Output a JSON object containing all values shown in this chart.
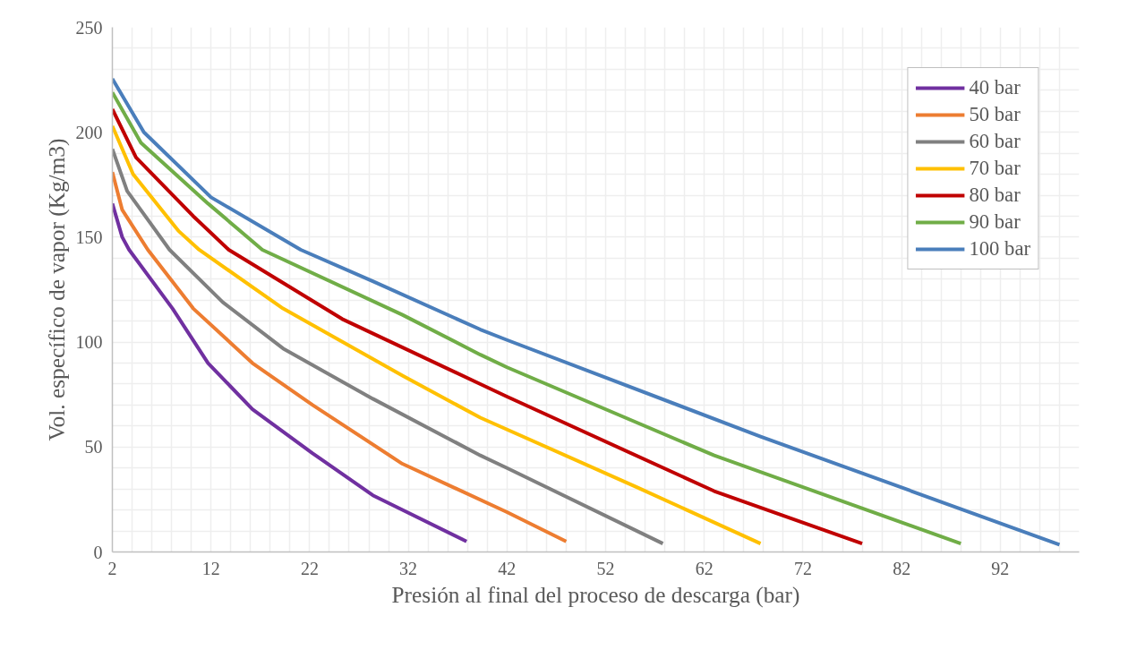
{
  "chart_data": {
    "type": "line",
    "xlabel": "Presión al final del proceso de descarga (bar)",
    "ylabel": "Vol. específico de vapor (Kg/m3)",
    "xlim": [
      2,
      100
    ],
    "ylim": [
      0,
      250
    ],
    "xticks": [
      2,
      {
        "value": 4,
        "label": null
      },
      {
        "value": 6,
        "label": null
      },
      {
        "value": 8,
        "label": null
      },
      {
        "value": 10,
        "label": null
      },
      12,
      {
        "value": 14,
        "label": null
      },
      {
        "value": 16,
        "label": null
      },
      {
        "value": 18,
        "label": null
      },
      {
        "value": 20,
        "label": null
      },
      22,
      {
        "value": 24,
        "label": null
      },
      {
        "value": 26,
        "label": null
      },
      {
        "value": 28,
        "label": null
      },
      {
        "value": 30,
        "label": null
      },
      32,
      {
        "value": 34,
        "label": null
      },
      {
        "value": 36,
        "label": null
      },
      {
        "value": 38,
        "label": null
      },
      {
        "value": 40,
        "label": null
      },
      42,
      {
        "value": 44,
        "label": null
      },
      {
        "value": 46,
        "label": null
      },
      {
        "value": 48,
        "label": null
      },
      {
        "value": 50,
        "label": null
      },
      52,
      {
        "value": 54,
        "label": null
      },
      {
        "value": 56,
        "label": null
      },
      {
        "value": 58,
        "label": null
      },
      {
        "value": 60,
        "label": null
      },
      62,
      {
        "value": 64,
        "label": null
      },
      {
        "value": 66,
        "label": null
      },
      {
        "value": 68,
        "label": null
      },
      {
        "value": 70,
        "label": null
      },
      72,
      {
        "value": 74,
        "label": null
      },
      {
        "value": 76,
        "label": null
      },
      {
        "value": 78,
        "label": null
      },
      {
        "value": 80,
        "label": null
      },
      82,
      {
        "value": 84,
        "label": null
      },
      {
        "value": 86,
        "label": null
      },
      {
        "value": 88,
        "label": null
      },
      {
        "value": 90,
        "label": null
      },
      92,
      {
        "value": 94,
        "label": null
      },
      {
        "value": 96,
        "label": null
      },
      {
        "value": 98,
        "label": null
      }
    ],
    "yticks": [
      0,
      {
        "value": 10,
        "label": null
      },
      {
        "value": 20,
        "label": null
      },
      {
        "value": 30,
        "label": null
      },
      {
        "value": 40,
        "label": null
      },
      50,
      {
        "value": 60,
        "label": null
      },
      {
        "value": 70,
        "label": null
      },
      {
        "value": 80,
        "label": null
      },
      {
        "value": 90,
        "label": null
      },
      100,
      {
        "value": 110,
        "label": null
      },
      {
        "value": 120,
        "label": null
      },
      {
        "value": 130,
        "label": null
      },
      {
        "value": 140,
        "label": null
      },
      150,
      {
        "value": 160,
        "label": null
      },
      {
        "value": 170,
        "label": null
      },
      {
        "value": 180,
        "label": null
      },
      {
        "value": 190,
        "label": null
      },
      200,
      {
        "value": 210,
        "label": null
      },
      {
        "value": 220,
        "label": null
      },
      {
        "value": 230,
        "label": null
      },
      {
        "value": 240,
        "label": null
      },
      250
    ],
    "grid": true,
    "legend": "top right",
    "marker": "none",
    "line_style": "solid",
    "series": [
      {
        "name": "40 bar",
        "color": "#7030a0",
        "x": [
          2,
          3,
          3.7,
          8.1,
          11.7,
          16.2,
          22.3,
          28.4,
          37.9
        ],
        "values": [
          166,
          150,
          144,
          116,
          90,
          68,
          47,
          27,
          5
        ]
      },
      {
        "name": "50 bar",
        "color": "#ed7d31",
        "x": [
          2,
          3,
          5.6,
          10.2,
          16.2,
          22.3,
          31.4,
          42,
          48
        ],
        "values": [
          181,
          163,
          144,
          116,
          90,
          70,
          42,
          19,
          5
        ]
      },
      {
        "name": "60 bar",
        "color": "#808080",
        "x": [
          2,
          3.5,
          7.8,
          13.2,
          19.3,
          28.4,
          39.3,
          42,
          57.8
        ],
        "values": [
          192,
          172,
          144,
          119,
          97,
          73,
          46,
          40,
          4
        ]
      },
      {
        "name": "70 bar",
        "color": "#ffc000",
        "x": [
          2,
          4.1,
          8.7,
          10.8,
          19.3,
          31.4,
          39.3,
          55.1,
          67.7
        ],
        "values": [
          203,
          180,
          153,
          144,
          116,
          84,
          64,
          31,
          4
        ]
      },
      {
        "name": "80 bar",
        "color": "#c00000",
        "x": [
          2,
          4.4,
          10.2,
          13.8,
          25.3,
          39.3,
          42,
          63,
          78
        ],
        "values": [
          211,
          188,
          160,
          144,
          111,
          80,
          74,
          29,
          4
        ]
      },
      {
        "name": "90 bar",
        "color": "#70ad47",
        "x": [
          2,
          4.9,
          11.7,
          17.2,
          31.4,
          39.3,
          42,
          63,
          88
        ],
        "values": [
          219,
          195,
          166,
          144,
          113,
          94,
          88,
          46,
          4
        ]
      },
      {
        "name": "100 bar",
        "color": "#4a7ebb",
        "x": [
          2,
          5.2,
          12,
          21.1,
          28.4,
          39.3,
          42,
          67.7,
          98
        ],
        "values": [
          225.5,
          200,
          169,
          144,
          129,
          106,
          101,
          55,
          3.5
        ]
      }
    ]
  }
}
